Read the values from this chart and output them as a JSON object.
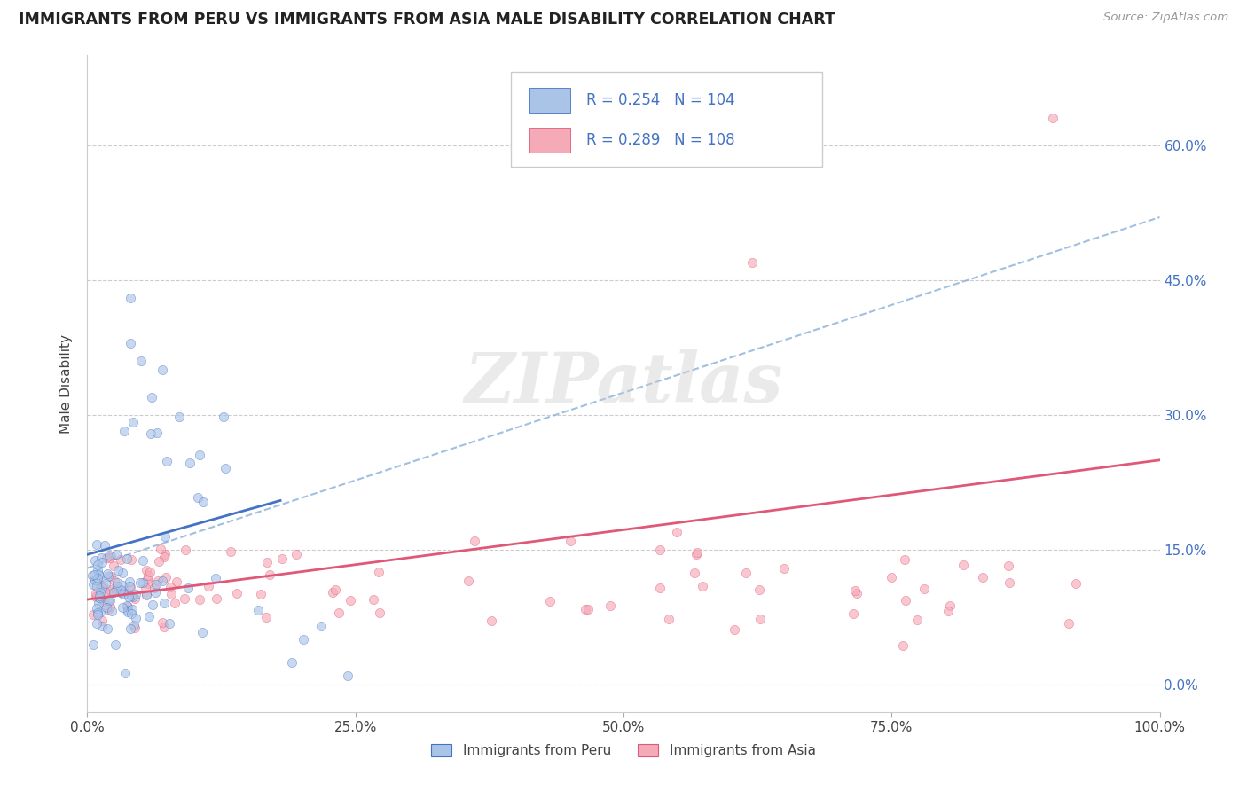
{
  "title": "IMMIGRANTS FROM PERU VS IMMIGRANTS FROM ASIA MALE DISABILITY CORRELATION CHART",
  "source": "Source: ZipAtlas.com",
  "ylabel": "Male Disability",
  "legend_labels": [
    "Immigrants from Peru",
    "Immigrants from Asia"
  ],
  "r_peru": 0.254,
  "n_peru": 104,
  "r_asia": 0.289,
  "n_asia": 108,
  "color_peru": "#aac4e8",
  "color_asia": "#f5aab8",
  "line_color_peru": "#4472c4",
  "line_color_asia": "#e05878",
  "dashed_color": "#8ab0d8",
  "title_color": "#222222",
  "legend_text_color": "#4472c4",
  "ytick_color": "#4472c4",
  "xlim": [
    0.0,
    1.0
  ],
  "ylim": [
    -0.03,
    0.7
  ],
  "xticks": [
    0.0,
    0.25,
    0.5,
    0.75,
    1.0
  ],
  "yticks": [
    0.0,
    0.15,
    0.3,
    0.45,
    0.6
  ],
  "grid_color": "#cccccc",
  "background_color": "#ffffff",
  "peru_trendline": [
    0.0,
    1.0,
    0.145,
    0.22
  ],
  "asia_trendline": [
    0.0,
    1.0,
    0.095,
    0.25
  ],
  "dashed_trendline": [
    0.0,
    1.0,
    0.13,
    0.52
  ],
  "watermark_text": "ZIPatlas",
  "watermark_fontsize": 56,
  "scatter_size": 55,
  "scatter_alpha": 0.65
}
